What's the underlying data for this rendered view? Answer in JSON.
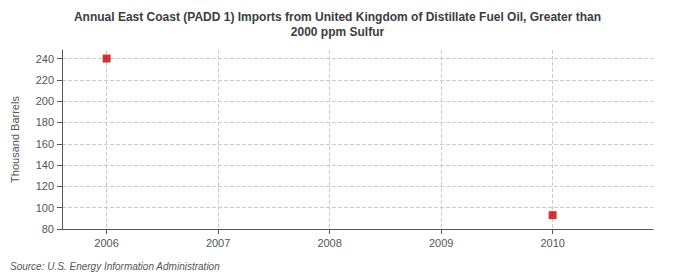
{
  "chart_data": {
    "type": "scatter",
    "title": "Annual East Coast (PADD 1) Imports from United Kingdom of Distillate Fuel Oil, Greater than\n2000 ppm Sulfur",
    "ylabel": "Thousand Barrels",
    "annotations": [
      "Source: U.S. Energy Information Administration"
    ],
    "x": [
      2006,
      2010
    ],
    "values": [
      240,
      93
    ],
    "color": "#cc0000",
    "marker": "square",
    "xlim": [
      2005.6,
      2010.9
    ],
    "xticks": [
      2006,
      2007,
      2008,
      2009,
      2010
    ],
    "ylim": [
      80,
      248
    ],
    "yticks": [
      80,
      100,
      120,
      140,
      160,
      180,
      200,
      220,
      240
    ],
    "grid": true
  }
}
